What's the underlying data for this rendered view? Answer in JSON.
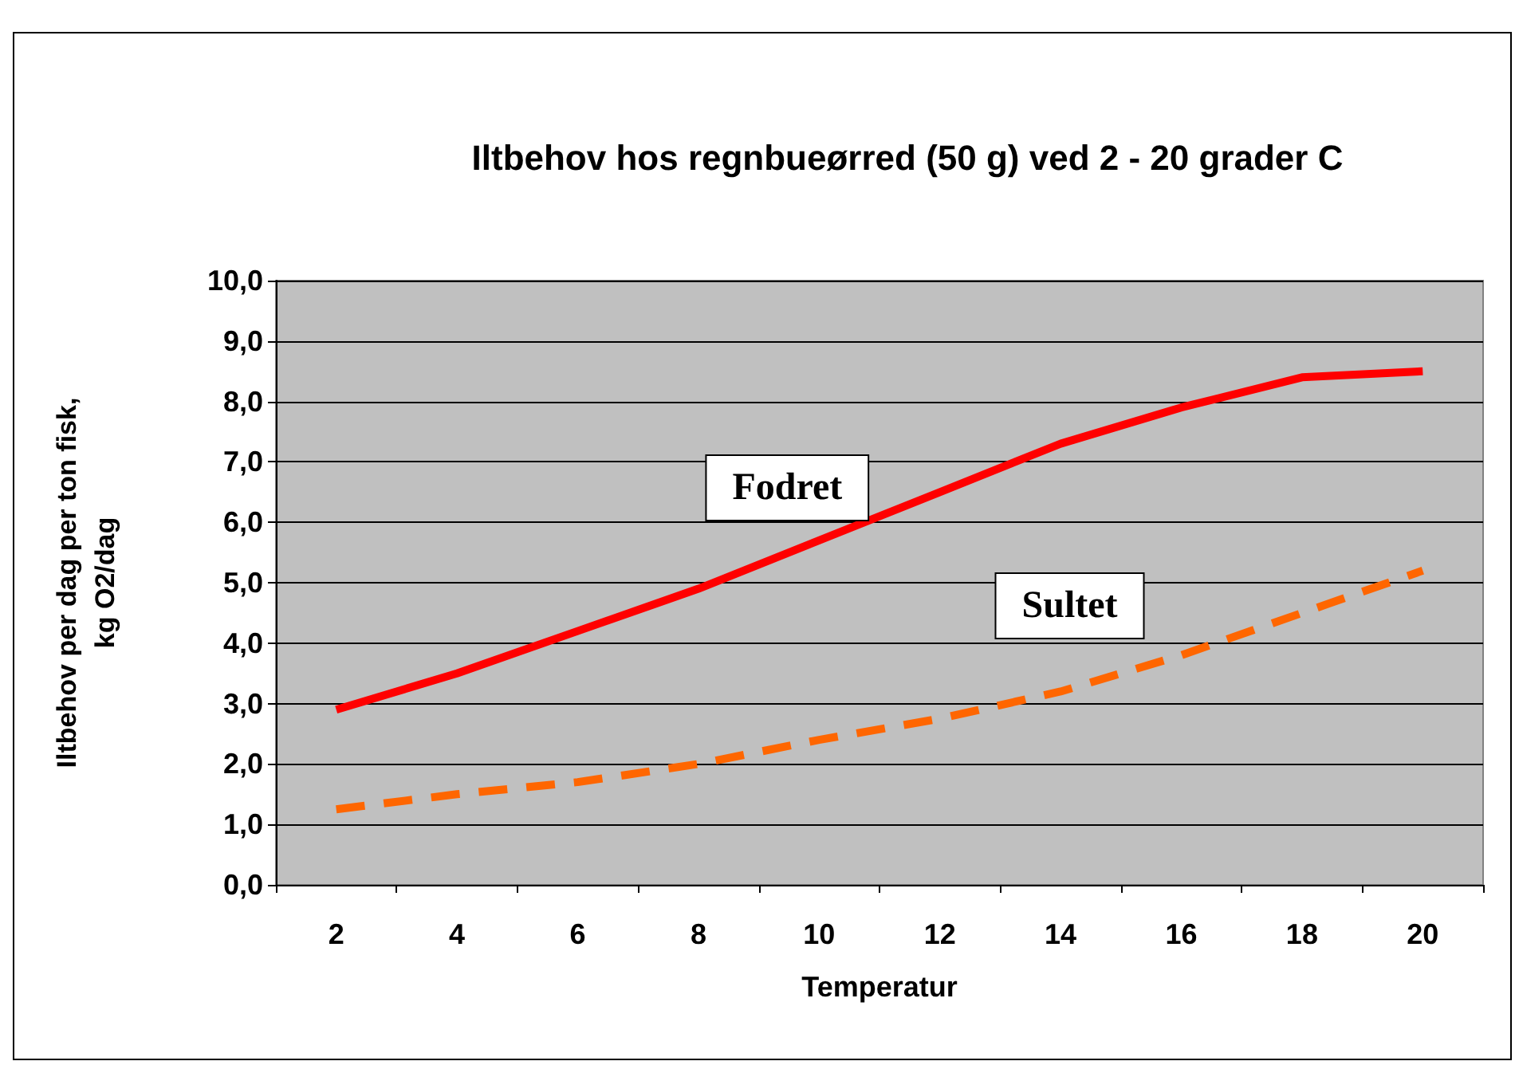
{
  "chart_data": {
    "type": "line",
    "title": "Iltbehov hos regnbueørred (50 g) ved 2 - 20 grader C",
    "xlabel": "Temperatur",
    "ylabel": "Iltbehov per dag per ton fisk,\nkg O2/dag",
    "categories": [
      "2",
      "4",
      "6",
      "8",
      "10",
      "12",
      "14",
      "16",
      "18",
      "20"
    ],
    "series": [
      {
        "name": "Fodret",
        "color": "#ff0000",
        "line_style": "solid",
        "values": [
          2.9,
          3.5,
          4.2,
          4.9,
          5.7,
          6.5,
          7.3,
          7.9,
          8.4,
          8.5
        ]
      },
      {
        "name": "Sultet",
        "color": "#ff6600",
        "line_style": "dashed",
        "values": [
          1.25,
          1.5,
          1.7,
          2.0,
          2.4,
          2.75,
          3.2,
          3.8,
          4.5,
          5.2
        ]
      }
    ],
    "ylim": [
      0,
      10
    ],
    "yticks": [
      {
        "value": 0,
        "label": "0,0"
      },
      {
        "value": 1,
        "label": "1,0"
      },
      {
        "value": 2,
        "label": "2,0"
      },
      {
        "value": 3,
        "label": "3,0"
      },
      {
        "value": 4,
        "label": "4,0"
      },
      {
        "value": 5,
        "label": "5,0"
      },
      {
        "value": 6,
        "label": "6,0"
      },
      {
        "value": 7,
        "label": "7,0"
      },
      {
        "value": 8,
        "label": "8,0"
      },
      {
        "value": 9,
        "label": "9,0"
      },
      {
        "value": 10,
        "label": "10,0"
      }
    ],
    "grid": "y",
    "legend": false,
    "marker": "none"
  }
}
